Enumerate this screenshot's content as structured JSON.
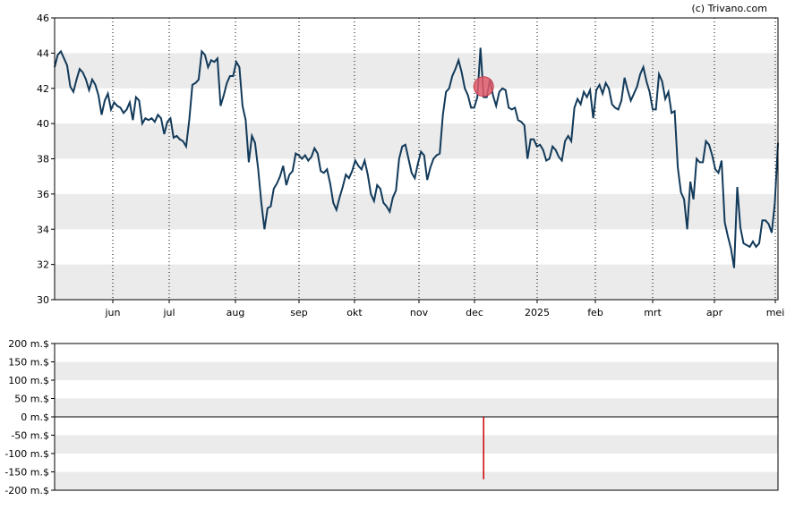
{
  "credit": "(c) Trivano.com",
  "colors": {
    "line": "#123a5a",
    "band": "#ebebeb",
    "marker": "#e05a6a",
    "bar": "#cc0000",
    "grid": "#000000"
  },
  "chart_data": [
    {
      "type": "line",
      "title": "",
      "xlabel": "",
      "ylabel": "",
      "ylim": [
        30,
        46
      ],
      "yticks": [
        "30",
        "32",
        "34",
        "36",
        "38",
        "40",
        "42",
        "44",
        "46"
      ],
      "month_labels": [
        "jun",
        "jul",
        "aug",
        "sep",
        "okt",
        "nov",
        "dec",
        "2025",
        "feb",
        "mrt",
        "apr",
        "mei"
      ],
      "grid": "vertical dotted at month starts, alternating horizontal bands",
      "series": [
        {
          "values": [
            43.2,
            43.9,
            44.1,
            43.7,
            43.3,
            42.1,
            41.8,
            42.5,
            43.1,
            42.9,
            42.5,
            41.9,
            42.5,
            42.2,
            41.6,
            40.5,
            41.3,
            41.7,
            40.8,
            41.2,
            41.0,
            40.9,
            40.6,
            40.8,
            41.2,
            40.2,
            41.5,
            41.3,
            40.0,
            40.3,
            40.2,
            40.3,
            40.1,
            40.5,
            40.3,
            39.4,
            40.1,
            40.3,
            39.2,
            39.3,
            39.1,
            39.0,
            38.7,
            40.2,
            42.2,
            42.3,
            42.5,
            44.1,
            43.9,
            43.2,
            43.6,
            43.5,
            43.7,
            41.0,
            41.6,
            42.3,
            42.7,
            42.7,
            43.5,
            43.2,
            41.0,
            40.2,
            37.8,
            39.3,
            38.9,
            37.4,
            35.5,
            34.0,
            35.2,
            35.3,
            36.3,
            36.6,
            37.0,
            37.6,
            36.5,
            37.1,
            37.3,
            38.3,
            38.2,
            38.0,
            38.2,
            37.9,
            38.1,
            38.6,
            38.3,
            37.3,
            37.2,
            37.4,
            36.6,
            35.5,
            35.1,
            35.8,
            36.4,
            37.1,
            36.9,
            37.3,
            37.9,
            37.6,
            37.4,
            37.9,
            37.1,
            36.0,
            35.6,
            36.5,
            36.3,
            35.5,
            35.3,
            35.0,
            35.8,
            36.2,
            38.0,
            38.7,
            38.8,
            38.0,
            37.2,
            36.9,
            37.7,
            38.4,
            38.2,
            36.8,
            37.5,
            38.0,
            38.2,
            38.3,
            40.5,
            41.8,
            42.0,
            42.7,
            43.1,
            43.6,
            42.9,
            42.0,
            41.6,
            40.9,
            40.9,
            41.5,
            44.3,
            41.5,
            41.5,
            42.5,
            41.6,
            41.0,
            41.8,
            42.0,
            41.9,
            40.9,
            40.8,
            40.9,
            40.2,
            40.1,
            39.9,
            38.0,
            39.1,
            39.1,
            38.7,
            38.8,
            38.5,
            37.9,
            38.0,
            38.7,
            38.5,
            38.1,
            37.9,
            39.0,
            39.3,
            39.0,
            40.9,
            41.4,
            41.1,
            41.8,
            41.5,
            41.9,
            40.3,
            41.9,
            42.2,
            41.7,
            42.3,
            42.0,
            41.1,
            40.9,
            40.8,
            41.3,
            42.6,
            41.9,
            41.3,
            41.7,
            42.1,
            42.8,
            43.2,
            42.4,
            41.8,
            40.8,
            40.8,
            42.8,
            42.4,
            41.4,
            41.8,
            40.6,
            40.7,
            37.5,
            36.1,
            35.7,
            34.0,
            36.7,
            35.7,
            38.0,
            37.8,
            37.8,
            39.0,
            38.8,
            38.2,
            37.4,
            37.2,
            37.9,
            34.4,
            33.6,
            32.9,
            31.8,
            36.4,
            34.1,
            33.2,
            33.1,
            33.0,
            33.3,
            33.0,
            33.2,
            34.5,
            34.5,
            34.3,
            33.8,
            35.5,
            38.9
          ]
        }
      ],
      "annotations": [
        {
          "label": "event marker",
          "x_index": 137,
          "y": 42.1
        }
      ]
    },
    {
      "type": "bar",
      "title": "",
      "xlabel": "",
      "ylabel": "",
      "ylim": [
        -200,
        200
      ],
      "yticks": [
        "200 m.$",
        "150 m.$",
        "100 m.$",
        "50 m.$",
        "0 m.$",
        "-50 m.$",
        "-100 m.$",
        "-150 m.$",
        "-200 m.$"
      ],
      "bars": [
        {
          "x_index": 137,
          "value": -170
        }
      ]
    }
  ]
}
